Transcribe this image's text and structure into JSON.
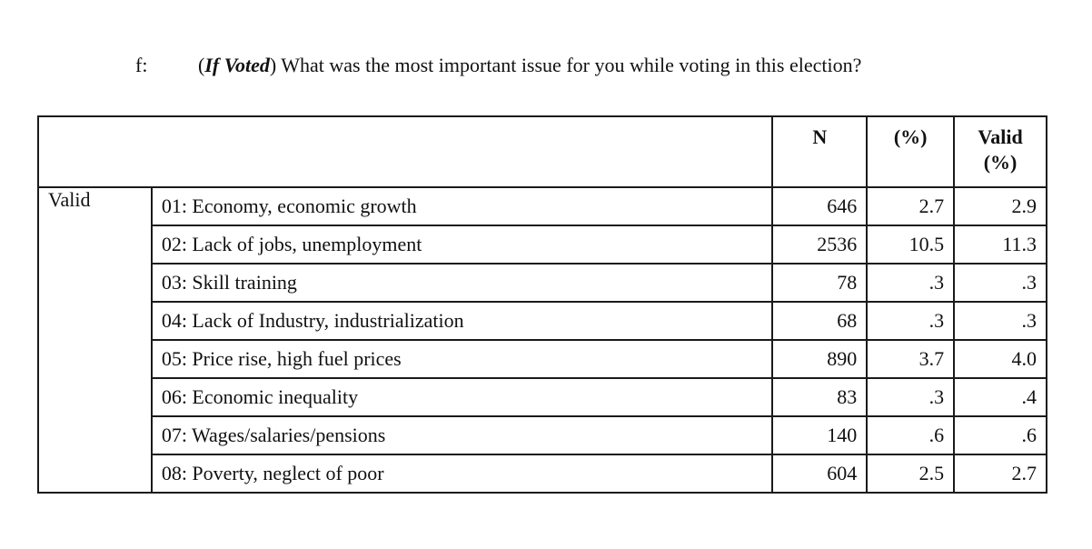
{
  "question": {
    "label": "f:",
    "qualifier_open": "(",
    "qualifier": "If Voted",
    "qualifier_close": ")",
    "text": " What was the most important issue for you while voting in this election?"
  },
  "table": {
    "headers": {
      "n": "N",
      "pct": "(%)",
      "valid_line1": "Valid",
      "valid_line2": "(%)"
    },
    "group_label": "Valid",
    "rows": [
      {
        "category": "01: Economy, economic growth",
        "n": "646",
        "pct": "2.7",
        "valid": "2.9"
      },
      {
        "category": "02: Lack of jobs, unemployment",
        "n": "2536",
        "pct": "10.5",
        "valid": "11.3"
      },
      {
        "category": "03: Skill training",
        "n": "78",
        "pct": ".3",
        "valid": ".3"
      },
      {
        "category": "04: Lack of Industry, industrialization",
        "n": "68",
        "pct": ".3",
        "valid": ".3"
      },
      {
        "category": "05: Price rise, high fuel prices",
        "n": "890",
        "pct": "3.7",
        "valid": "4.0"
      },
      {
        "category": "06: Economic inequality",
        "n": "83",
        "pct": ".3",
        "valid": ".4"
      },
      {
        "category": "07: Wages/salaries/pensions",
        "n": "140",
        "pct": ".6",
        "valid": ".6"
      },
      {
        "category": "08: Poverty, neglect of poor",
        "n": "604",
        "pct": "2.5",
        "valid": "2.7"
      }
    ]
  }
}
